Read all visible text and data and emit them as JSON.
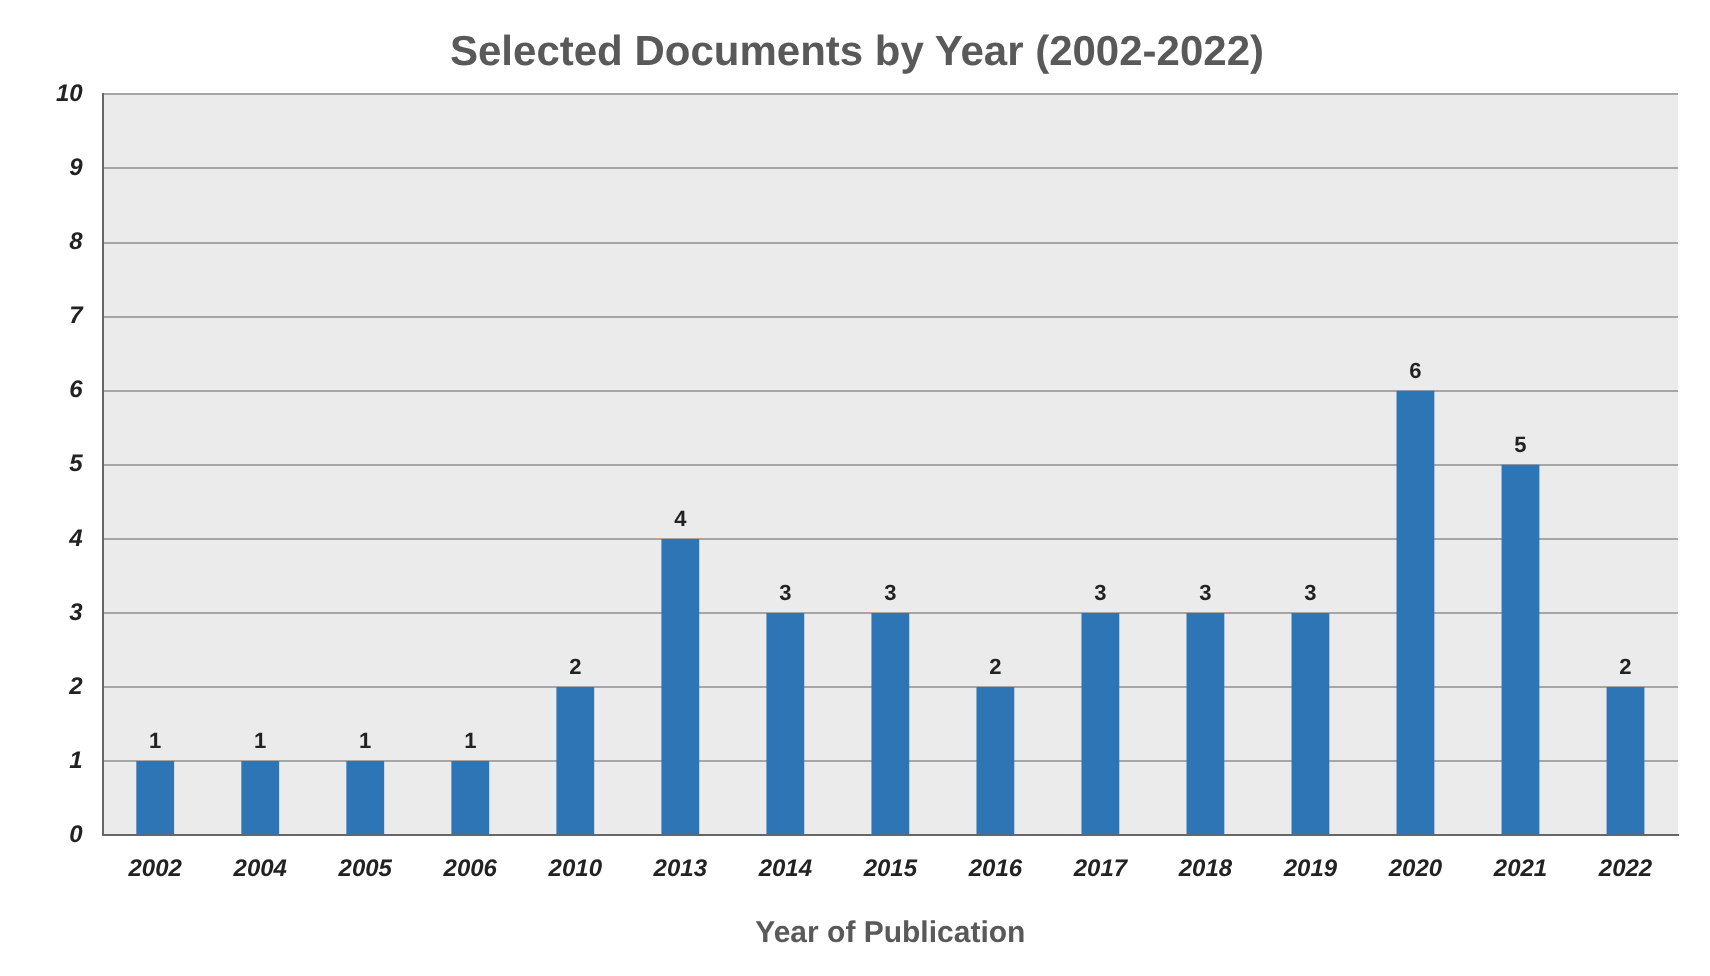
{
  "chart_data": {
    "type": "bar",
    "title": "Selected Documents by Year (2002-2022)",
    "xlabel": "Year of Publication",
    "categories": [
      "2002",
      "2004",
      "2005",
      "2006",
      "2010",
      "2013",
      "2014",
      "2015",
      "2016",
      "2017",
      "2018",
      "2019",
      "2020",
      "2021",
      "2022"
    ],
    "values": [
      1,
      1,
      1,
      1,
      2,
      4,
      3,
      3,
      2,
      3,
      3,
      3,
      6,
      5,
      2
    ],
    "color": "#2e75b6",
    "ylim": [
      0,
      10
    ],
    "yticks": [
      0,
      1,
      2,
      3,
      4,
      5,
      6,
      7,
      8,
      9,
      10
    ],
    "grid": "y",
    "data_labels": true,
    "legend": false
  }
}
